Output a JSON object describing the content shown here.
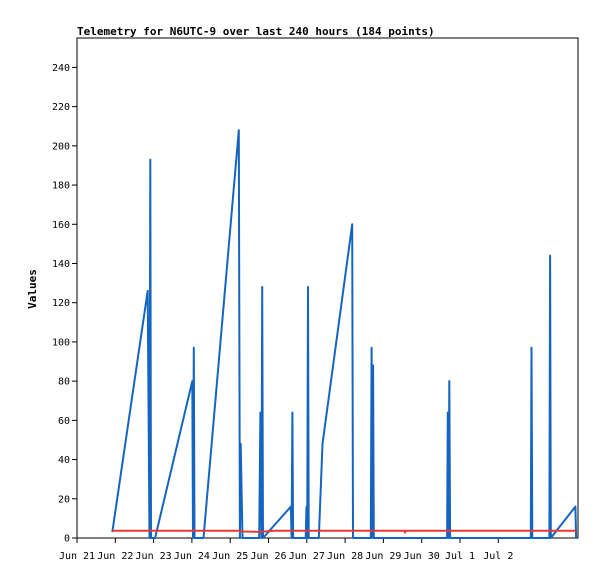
{
  "chart_data": {
    "type": "line",
    "title": "Telemetry for N6UTC-9 over last 240 hours (184 points)",
    "xlabel": "",
    "ylabel": "Values",
    "ylim": [
      0,
      255
    ],
    "xlim_days": [
      0,
      11
    ],
    "x_ticks": [
      "Jun 21",
      "Jun 22",
      "Jun 23",
      "Jun 24",
      "Jun 25",
      "Jun 26",
      "Jun 27",
      "Jun 28",
      "Jun 29",
      "Jun 30",
      "Jul 1",
      "Jul 2"
    ],
    "y_ticks": [
      0,
      20,
      40,
      60,
      80,
      100,
      120,
      140,
      160,
      180,
      200,
      220,
      240
    ],
    "grid": false,
    "legend": "none",
    "series": [
      {
        "color": "#1565c0",
        "points": [
          [
            0.95,
            3
          ],
          [
            1.9,
            126
          ],
          [
            1.95,
            0
          ],
          [
            1.97,
            193
          ],
          [
            1.99,
            0
          ],
          [
            2.1,
            0
          ],
          [
            3.1,
            80
          ],
          [
            3.12,
            0
          ],
          [
            3.14,
            97
          ],
          [
            3.16,
            0
          ],
          [
            3.4,
            0
          ],
          [
            4.35,
            208
          ],
          [
            4.38,
            0
          ],
          [
            4.4,
            48
          ],
          [
            4.45,
            0
          ],
          [
            4.9,
            0
          ],
          [
            4.93,
            64
          ],
          [
            4.96,
            0
          ],
          [
            4.98,
            128
          ],
          [
            5.0,
            0
          ],
          [
            5.75,
            16
          ],
          [
            5.77,
            0
          ],
          [
            5.79,
            64
          ],
          [
            5.81,
            0
          ],
          [
            6.15,
            0
          ],
          [
            6.17,
            16
          ],
          [
            6.19,
            0
          ],
          [
            6.21,
            128
          ],
          [
            6.23,
            0
          ],
          [
            6.5,
            0
          ],
          [
            6.6,
            48
          ],
          [
            7.4,
            160
          ],
          [
            7.42,
            0
          ],
          [
            7.9,
            0
          ],
          [
            7.92,
            97
          ],
          [
            7.94,
            0
          ],
          [
            7.96,
            88
          ],
          [
            7.98,
            0
          ],
          [
            9.95,
            0
          ],
          [
            9.97,
            64
          ],
          [
            9.99,
            0
          ],
          [
            10.01,
            80
          ],
          [
            10.03,
            0
          ],
          [
            12.2,
            0
          ],
          [
            12.22,
            97
          ],
          [
            12.24,
            0
          ],
          [
            12.7,
            0
          ],
          [
            12.72,
            144
          ],
          [
            12.74,
            0
          ],
          [
            13.4,
            16
          ],
          [
            13.42,
            0
          ]
        ]
      },
      {
        "color": "#e53935",
        "points": [
          [
            0.95,
            3.7
          ],
          [
            4.35,
            3.7
          ],
          [
            4.5,
            3.3
          ],
          [
            4.9,
            3.1
          ],
          [
            5.3,
            3.7
          ],
          [
            8.8,
            3.7
          ],
          [
            8.82,
            2.8
          ],
          [
            8.84,
            3.7
          ],
          [
            13.42,
            3.7
          ]
        ]
      }
    ]
  }
}
